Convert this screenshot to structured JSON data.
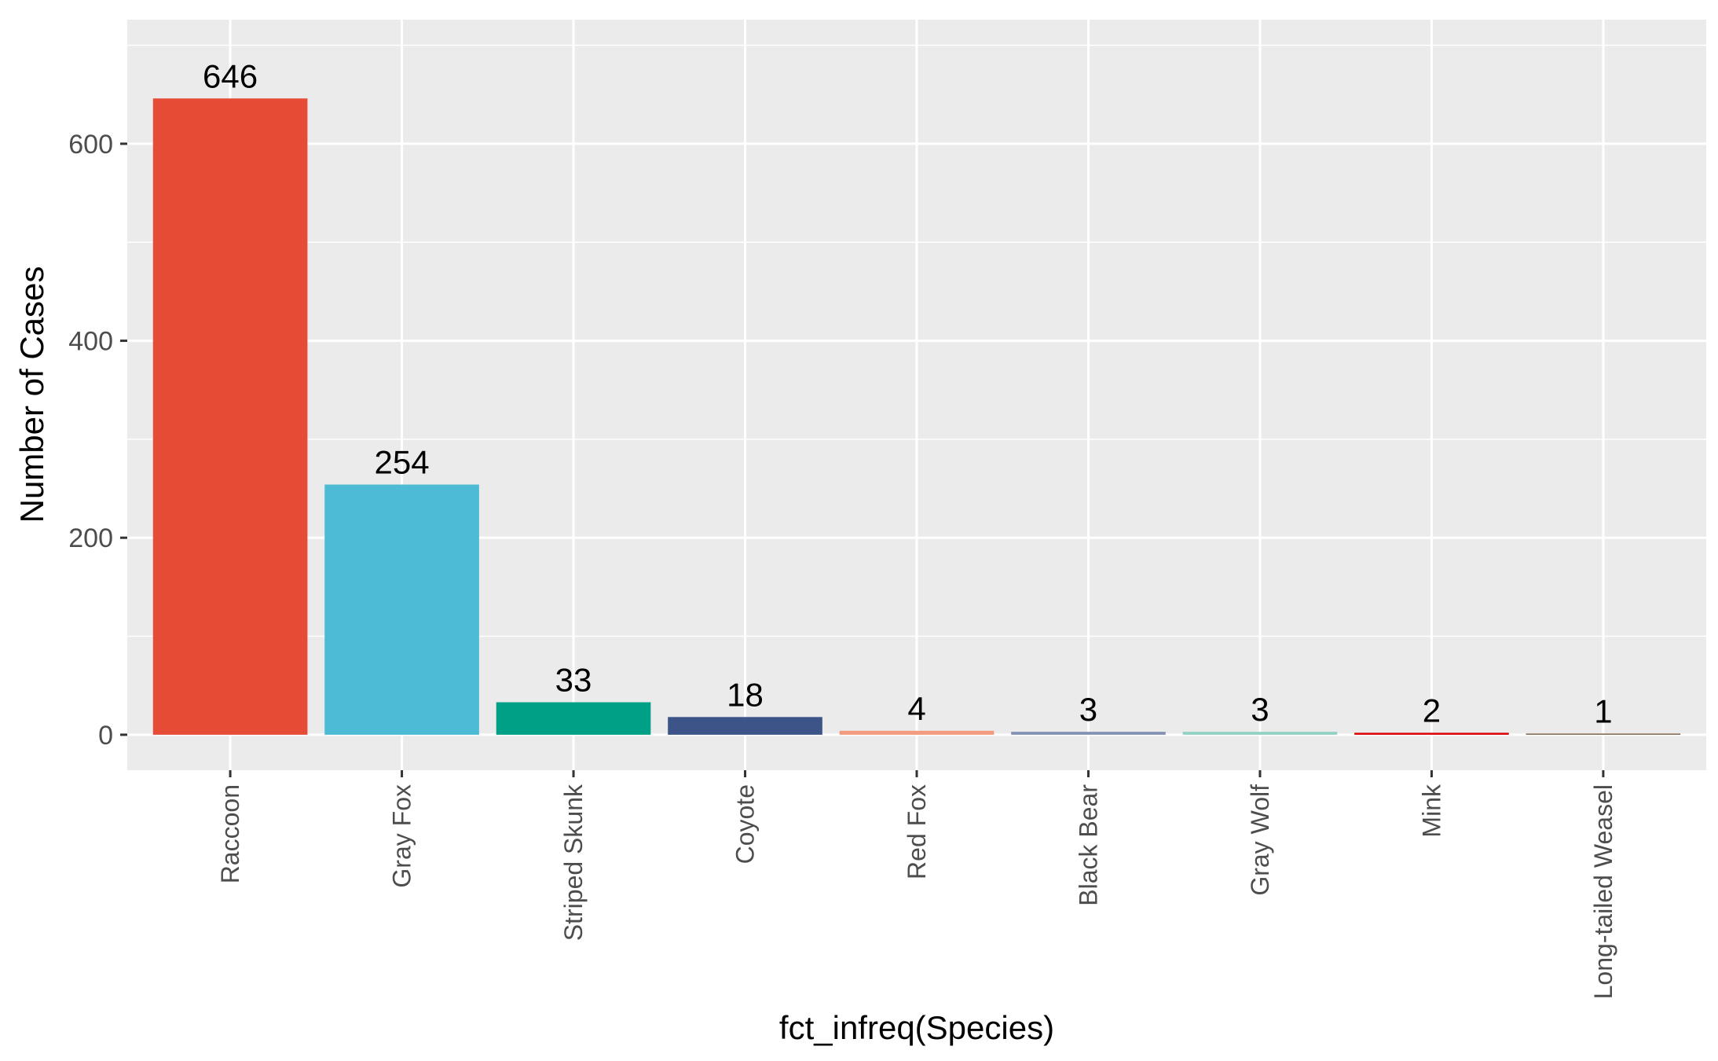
{
  "chart_data": {
    "type": "bar",
    "title": "",
    "xlabel": "fct_infreq(Species)",
    "ylabel": "Number of Cases",
    "categories": [
      "Raccoon",
      "Gray Fox",
      "Striped Skunk",
      "Coyote",
      "Red Fox",
      "Black Bear",
      "Gray Wolf",
      "Mink",
      "Long-tailed Weasel"
    ],
    "values": [
      646,
      254,
      33,
      18,
      4,
      3,
      3,
      2,
      1
    ],
    "data_labels": [
      "646",
      "254",
      "33",
      "18",
      "4",
      "3",
      "3",
      "2",
      "1"
    ],
    "colors": [
      "#E64B35",
      "#4DBBD5",
      "#00A087",
      "#3C5488",
      "#F39B7F",
      "#8491B4",
      "#91D1C2",
      "#DC0000",
      "#7E6148"
    ],
    "ylim": [
      -36,
      726
    ],
    "yticks": [
      0,
      200,
      400,
      600
    ],
    "ytick_labels": [
      "0",
      "200",
      "400",
      "600"
    ],
    "grid": true,
    "legend": "none",
    "panel_background": "#ebebeb",
    "grid_color": "#ffffff"
  }
}
